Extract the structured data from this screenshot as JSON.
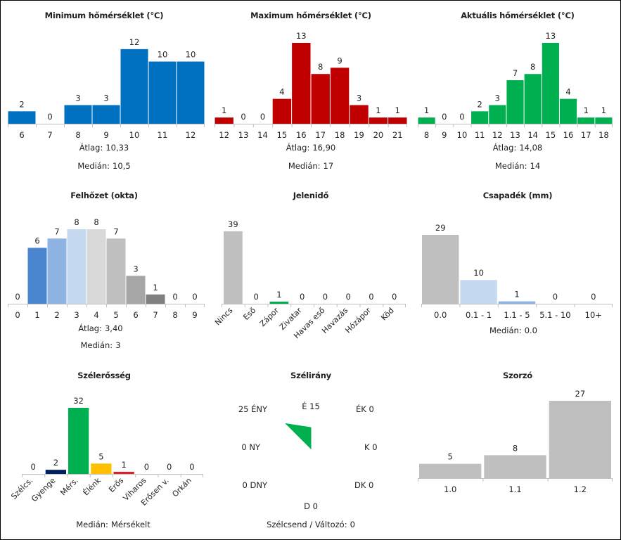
{
  "panels": [
    {
      "id": "min",
      "title": "Minimum hőmérséklet (°C)",
      "stats": [
        {
          "label": "Átlag:",
          "value": "10,33"
        },
        {
          "label": "Medián:",
          "value": "10,5"
        }
      ],
      "chart_data": {
        "type": "bar",
        "categories": [
          "6",
          "7",
          "8",
          "9",
          "10",
          "11",
          "12"
        ],
        "values": [
          2,
          0,
          3,
          3,
          12,
          10,
          10
        ],
        "ylim": [
          0,
          13
        ],
        "color": "#0070c0",
        "xlabel": "",
        "ylabel": ""
      }
    },
    {
      "id": "max",
      "title": "Maximum hőmérséklet (°C)",
      "stats": [
        {
          "label": "Átlag:",
          "value": "16,90"
        },
        {
          "label": "Medián:",
          "value": "17"
        }
      ],
      "chart_data": {
        "type": "bar",
        "categories": [
          "12",
          "13",
          "14",
          "15",
          "16",
          "17",
          "18",
          "19",
          "20",
          "21"
        ],
        "values": [
          1,
          0,
          0,
          4,
          13,
          8,
          9,
          3,
          1,
          1
        ],
        "ylim": [
          0,
          13
        ],
        "color": "#c00000",
        "xlabel": "",
        "ylabel": ""
      }
    },
    {
      "id": "cur",
      "title": "Aktuális hőmérséklet (°C)",
      "stats": [
        {
          "label": "Átlag:",
          "value": "14,08"
        },
        {
          "label": "Medián:",
          "value": "14"
        }
      ],
      "chart_data": {
        "type": "bar",
        "categories": [
          "8",
          "9",
          "10",
          "11",
          "12",
          "13",
          "14",
          "15",
          "16",
          "17",
          "18"
        ],
        "values": [
          1,
          0,
          0,
          2,
          3,
          7,
          8,
          13,
          4,
          1,
          1
        ],
        "ylim": [
          0,
          13
        ],
        "color": "#00b050",
        "xlabel": "",
        "ylabel": ""
      }
    },
    {
      "id": "cloud",
      "title": "Felhőzet (okta)",
      "stats": [
        {
          "label": "Átlag:",
          "value": "3,40"
        },
        {
          "label": "Medián:",
          "value": "3"
        }
      ],
      "chart_data": {
        "type": "bar",
        "categories": [
          "0",
          "1",
          "2",
          "3",
          "4",
          "5",
          "6",
          "7",
          "8",
          "9"
        ],
        "values": [
          0,
          6,
          7,
          8,
          8,
          7,
          3,
          1,
          0,
          0
        ],
        "ylim": [
          0,
          8
        ],
        "colors": [
          "#4a86d0",
          "#4a86d0",
          "#8eb4e3",
          "#c5d9f1",
          "#d9d9d9",
          "#bfbfbf",
          "#a6a6a6",
          "#808080",
          "#595959",
          "#404040"
        ],
        "xlabel": "",
        "ylabel": ""
      }
    },
    {
      "id": "wx",
      "title": "Jelenidő",
      "stats": [],
      "chart_data": {
        "type": "bar",
        "categories": [
          "Nincs",
          "Eső",
          "Zápor",
          "Zivatar",
          "Havas eső",
          "Havazás",
          "Hózápor",
          "Köd"
        ],
        "values": [
          39,
          0,
          1,
          0,
          0,
          0,
          0,
          0
        ],
        "ylim": [
          0,
          39
        ],
        "colors": [
          "#bfbfbf",
          "#bfbfbf",
          "#00b050",
          "#bfbfbf",
          "#bfbfbf",
          "#bfbfbf",
          "#bfbfbf",
          "#bfbfbf"
        ],
        "xlabel": "",
        "ylabel": ""
      }
    },
    {
      "id": "precip",
      "title": "Csapadék (mm)",
      "stats": [
        {
          "label": "Medián:",
          "value": "0.0"
        }
      ],
      "chart_data": {
        "type": "bar",
        "categories": [
          "0.0",
          "0.1 - 1",
          "1.1 - 5",
          "5.1 - 10",
          "10+"
        ],
        "values": [
          29,
          10,
          1,
          0,
          0
        ],
        "ylim": [
          0,
          29
        ],
        "colors": [
          "#bfbfbf",
          "#c5d9f1",
          "#8eb4e3",
          "#4a86d0",
          "#0070c0"
        ],
        "xlabel": "",
        "ylabel": ""
      }
    },
    {
      "id": "wind",
      "title": "Szélerősség",
      "stats": [
        {
          "label": "Medián:",
          "value": "Mérsékelt"
        }
      ],
      "chart_data": {
        "type": "bar",
        "categories": [
          "Szélcs.",
          "Gyenge",
          "Mérs.",
          "Élénk",
          "Erős",
          "Viharos",
          "Erősen v.",
          "Orkán"
        ],
        "values": [
          0,
          2,
          32,
          5,
          1,
          0,
          0,
          0
        ],
        "ylim": [
          0,
          32
        ],
        "colors": [
          "#bfbfbf",
          "#002060",
          "#00b050",
          "#ffc000",
          "#e02020",
          "#c00000",
          "#800000",
          "#400000"
        ],
        "xlabel": "",
        "ylabel": ""
      }
    },
    {
      "id": "dir",
      "title": "Szélirány",
      "stats": [
        {
          "label": "Szélcsend / Változó:",
          "value": "0"
        }
      ],
      "chart_data": {
        "type": "radar",
        "categories": [
          "É",
          "ÉK",
          "K",
          "DK",
          "D",
          "DNY",
          "NY",
          "ÉNY"
        ],
        "values": [
          15,
          0,
          0,
          0,
          0,
          0,
          0,
          25
        ],
        "rmax": 25,
        "color": "#00b050"
      }
    },
    {
      "id": "mult",
      "title": "Szorzó",
      "stats": [],
      "chart_data": {
        "type": "bar",
        "categories": [
          "1.0",
          "1.1",
          "1.2"
        ],
        "values": [
          5,
          8,
          27
        ],
        "ylim": [
          0,
          27
        ],
        "color": "#bfbfbf",
        "xlabel": "",
        "ylabel": ""
      }
    }
  ]
}
